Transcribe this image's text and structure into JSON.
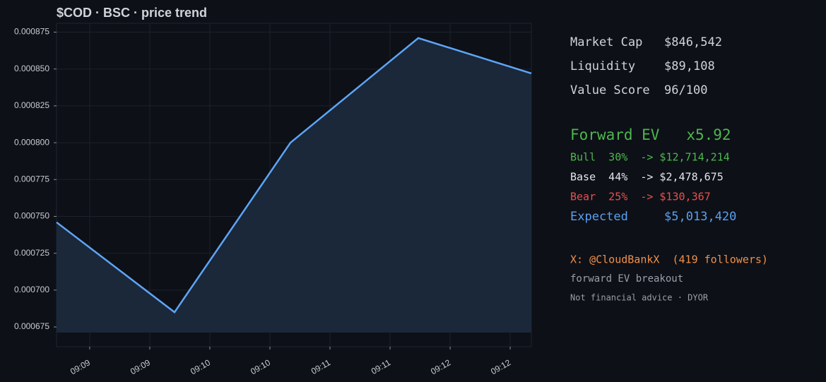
{
  "chart_data": {
    "type": "area-line",
    "title": "$COD · BSC  ·  price trend",
    "x": [
      548.724,
      549.706,
      550.671,
      551.735,
      552.676
    ],
    "values": [
      0.000746,
      0.000685,
      0.0008,
      0.000871,
      0.000847
    ],
    "color": "#5ea5f7",
    "fill": "#1a283a",
    "xlim": [
      548.724,
      552.676
    ],
    "xticks": [
      {
        "value": 549,
        "label": "09:09"
      },
      {
        "value": 549.5,
        "label": "09:09"
      },
      {
        "value": 550,
        "label": "09:10"
      },
      {
        "value": 550.5,
        "label": "09:10"
      },
      {
        "value": 551,
        "label": "09:11"
      },
      {
        "value": 551.5,
        "label": "09:11"
      },
      {
        "value": 552,
        "label": "09:12"
      },
      {
        "value": 552.5,
        "label": "09:12"
      }
    ],
    "ylim": [
      0.0006616,
      0.000881
    ],
    "yticks": [
      0.000675,
      {
        "value": 0.0007,
        "label": "0.000700"
      },
      0.000725,
      {
        "value": 0.00075,
        "label": "0.000750"
      },
      0.000775,
      {
        "value": 0.0008,
        "label": "0.000800"
      },
      0.000825,
      {
        "value": 0.00085,
        "label": "0.000850"
      },
      0.000875
    ],
    "grid": true
  },
  "panel": {
    "lines": [
      {
        "text": "Market Cap   $846,542",
        "color": "#d0d4da"
      },
      {
        "text": "Liquidity    $89,108",
        "color": "#d0d4da"
      },
      {
        "text": "Value Score  96/100",
        "color": "#d0d4da"
      },
      {
        "text": "Forward EV   x5.92",
        "color": "#4cb84c"
      },
      {
        "text": "Bull  30%  -> $12,714,214",
        "color": "#4cb84c"
      },
      {
        "text": "Base  44%  -> $2,478,675",
        "color": "#e4e6ea"
      },
      {
        "text": "Bear  25%  -> $130,367",
        "color": "#e8514a"
      },
      {
        "text": "Expected     $5,013,420",
        "color": "#5aa0f0"
      },
      {
        "text": "X: @CloudBankX  (419 followers)",
        "color": "#f0904a"
      },
      {
        "text": "forward EV breakout",
        "color": "#9a9fa8"
      },
      {
        "text": "Not financial advice · DYOR",
        "color": "#9a9fa8"
      }
    ]
  }
}
